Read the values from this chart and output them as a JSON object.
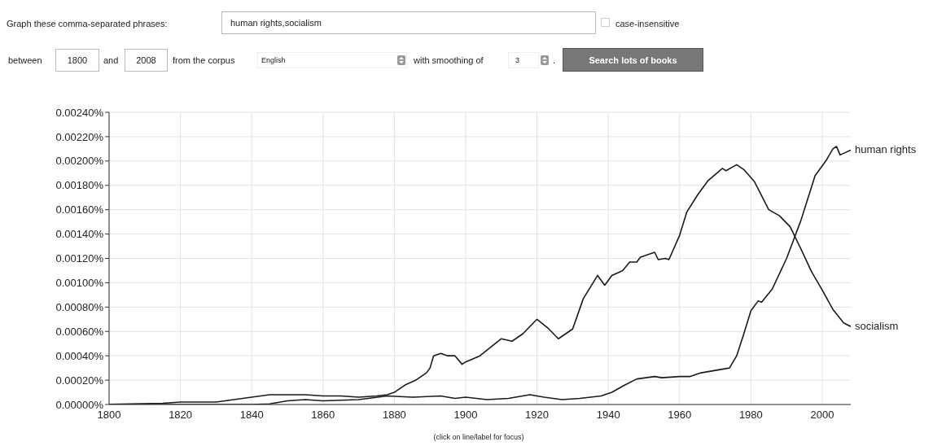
{
  "chart_data": {
    "type": "line",
    "annotations": [
      "Graph these comma-separated phrases:",
      "human rights,socialism",
      "case-insensitive",
      "between",
      "1800",
      "and",
      "2008",
      "from the corpus",
      "English",
      "with smoothing of",
      "3",
      ".",
      "Search lots of books",
      "(click on line/label for focus)"
    ],
    "xlim": [
      1800,
      2008
    ],
    "xticks": [
      1800,
      1820,
      1840,
      1860,
      1880,
      1900,
      1920,
      1940,
      1960,
      1980,
      2000
    ],
    "ylim": [
      0,
      0.0024
    ],
    "yticks": [
      {
        "value": 0,
        "label": "0.00000%"
      },
      {
        "value": 0.0002,
        "label": "0.00020%"
      },
      {
        "value": 0.0004,
        "label": "0.00040%"
      },
      {
        "value": 0.0006,
        "label": "0.00060%"
      },
      {
        "value": 0.0008,
        "label": "0.00080%"
      },
      {
        "value": 0.001,
        "label": "0.00100%"
      },
      {
        "value": 0.0012,
        "label": "0.00120%"
      },
      {
        "value": 0.0014,
        "label": "0.00140%"
      },
      {
        "value": 0.0016,
        "label": "0.00160%"
      },
      {
        "value": 0.0018,
        "label": "0.00180%"
      },
      {
        "value": 0.002,
        "label": "0.00200%"
      },
      {
        "value": 0.0022,
        "label": "0.00220%"
      },
      {
        "value": 0.0024,
        "label": "0.00240%"
      }
    ],
    "grid": true,
    "series": [
      {
        "name": "human rights",
        "color": "#1a1a1a",
        "x": [
          1800,
          1840,
          1845,
          1850,
          1855,
          1860,
          1870,
          1878,
          1885,
          1893,
          1897,
          1900,
          1906,
          1912,
          1918,
          1922,
          1927,
          1932,
          1938,
          1941,
          1944,
          1948,
          1953,
          1955,
          1960,
          1963,
          1966,
          1970,
          1974,
          1976,
          1978,
          1980,
          1982,
          1983,
          1986,
          1990,
          1994,
          1998,
          2001,
          2003,
          2004,
          2005,
          2008
        ],
        "values": [
          0,
          0,
          5e-06,
          3e-05,
          4e-05,
          3e-05,
          4e-05,
          7e-05,
          6e-05,
          7e-05,
          5e-05,
          6e-05,
          4e-05,
          5e-05,
          8e-05,
          6e-05,
          4e-05,
          5e-05,
          7e-05,
          0.0001,
          0.00015,
          0.00021,
          0.00023,
          0.00022,
          0.00023,
          0.00023,
          0.00026,
          0.00028,
          0.0003,
          0.0004,
          0.00058,
          0.00077,
          0.00085,
          0.00084,
          0.00095,
          0.0012,
          0.00151,
          0.00188,
          0.002,
          0.0021,
          0.00212,
          0.00205,
          0.00209
        ]
      },
      {
        "name": "socialism",
        "color": "#1a1a1a",
        "x": [
          1800,
          1815,
          1820,
          1830,
          1835,
          1840,
          1845,
          1850,
          1855,
          1860,
          1865,
          1870,
          1875,
          1878,
          1880,
          1883,
          1886,
          1889,
          1890,
          1891,
          1893,
          1895,
          1897,
          1899,
          1900,
          1904,
          1907,
          1910,
          1913,
          1916,
          1920,
          1923,
          1926,
          1930,
          1933,
          1937,
          1939,
          1941,
          1944,
          1946,
          1948,
          1949,
          1953,
          1954,
          1956,
          1957,
          1960,
          1962,
          1965,
          1968,
          1972,
          1973,
          1976,
          1978,
          1981,
          1985,
          1988,
          1991,
          1994,
          1997,
          2000,
          2003,
          2006,
          2008
        ],
        "values": [
          2e-06,
          1e-05,
          2e-05,
          2e-05,
          4e-05,
          6e-05,
          8e-05,
          8e-05,
          8e-05,
          7e-05,
          7e-05,
          6e-05,
          7e-05,
          8e-05,
          0.0001,
          0.00016,
          0.0002,
          0.00026,
          0.0003,
          0.0004,
          0.00042,
          0.0004,
          0.0004,
          0.00033,
          0.00035,
          0.0004,
          0.00047,
          0.00054,
          0.00052,
          0.00058,
          0.0007,
          0.00063,
          0.00054,
          0.00062,
          0.00087,
          0.00106,
          0.00098,
          0.00106,
          0.0011,
          0.00117,
          0.00117,
          0.00121,
          0.00125,
          0.00119,
          0.0012,
          0.00119,
          0.00139,
          0.00158,
          0.00172,
          0.00184,
          0.00194,
          0.00192,
          0.00197,
          0.00193,
          0.00183,
          0.0016,
          0.00155,
          0.00146,
          0.00128,
          0.00109,
          0.00094,
          0.00078,
          0.00067,
          0.00064
        ]
      }
    ]
  }
}
